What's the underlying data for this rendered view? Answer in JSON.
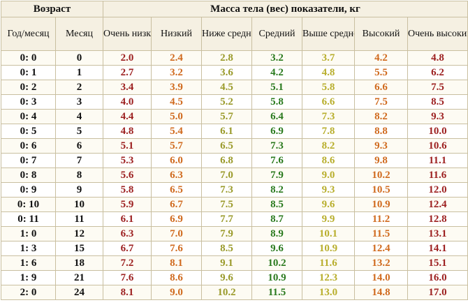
{
  "header": {
    "age_group": "Возраст",
    "mass_group": "Масса тела (вес) показатели, кг",
    "columns": [
      "Год/месяц",
      "Месяц",
      "Очень низкий",
      "Низкий",
      "Ниже среднего",
      "Средний",
      "Выше среднего",
      "Высокий",
      "Очень высокий"
    ]
  },
  "colors": {
    "very_low": "#9c1f1f",
    "low": "#d06a1e",
    "below_average": "#9a9a2a",
    "average": "#2a7a1e",
    "above_average": "#b8ae2c",
    "high": "#d06a1e",
    "very_high": "#9c1f1f"
  },
  "rows": [
    [
      "0: 0",
      "0",
      "2.0",
      "2.4",
      "2.8",
      "3.2",
      "3.7",
      "4.2",
      "4.8"
    ],
    [
      "0: 1",
      "1",
      "2.7",
      "3.2",
      "3.6",
      "4.2",
      "4.8",
      "5.5",
      "6.2"
    ],
    [
      "0: 2",
      "2",
      "3.4",
      "3.9",
      "4.5",
      "5.1",
      "5.8",
      "6.6",
      "7.5"
    ],
    [
      "0: 3",
      "3",
      "4.0",
      "4.5",
      "5.2",
      "5.8",
      "6.6",
      "7.5",
      "8.5"
    ],
    [
      "0: 4",
      "4",
      "4.4",
      "5.0",
      "5.7",
      "6.4",
      "7.3",
      "8.2",
      "9.3"
    ],
    [
      "0: 5",
      "5",
      "4.8",
      "5.4",
      "6.1",
      "6.9",
      "7.8",
      "8.8",
      "10.0"
    ],
    [
      "0: 6",
      "6",
      "5.1",
      "5.7",
      "6.5",
      "7.3",
      "8.2",
      "9.3",
      "10.6"
    ],
    [
      "0: 7",
      "7",
      "5.3",
      "6.0",
      "6.8",
      "7.6",
      "8.6",
      "9.8",
      "11.1"
    ],
    [
      "0: 8",
      "8",
      "5.6",
      "6.3",
      "7.0",
      "7.9",
      "9.0",
      "10.2",
      "11.6"
    ],
    [
      "0: 9",
      "9",
      "5.8",
      "6.5",
      "7.3",
      "8.2",
      "9.3",
      "10.5",
      "12.0"
    ],
    [
      "0: 10",
      "10",
      "5.9",
      "6.7",
      "7.5",
      "8.5",
      "9.6",
      "10.9",
      "12.4"
    ],
    [
      "0: 11",
      "11",
      "6.1",
      "6.9",
      "7.7",
      "8.7",
      "9.9",
      "11.2",
      "12.8"
    ],
    [
      "1: 0",
      "12",
      "6.3",
      "7.0",
      "7.9",
      "8.9",
      "10.1",
      "11.5",
      "13.1"
    ],
    [
      "1: 3",
      "15",
      "6.7",
      "7.6",
      "8.5",
      "9.6",
      "10.9",
      "12.4",
      "14.1"
    ],
    [
      "1: 6",
      "18",
      "7.2",
      "8.1",
      "9.1",
      "10.2",
      "11.6",
      "13.2",
      "15.1"
    ],
    [
      "1: 9",
      "21",
      "7.6",
      "8.6",
      "9.6",
      "10.9",
      "12.3",
      "14.0",
      "16.0"
    ],
    [
      "2: 0",
      "24",
      "8.1",
      "9.0",
      "10.2",
      "11.5",
      "13.0",
      "14.8",
      "17.0"
    ]
  ]
}
